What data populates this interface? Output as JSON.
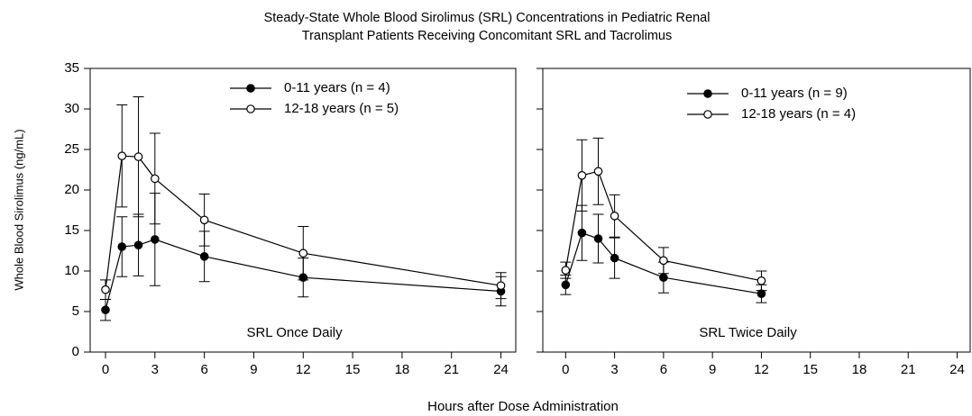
{
  "title": [
    "Steady-State Whole Blood Sirolimus (SRL) Concentrations in Pediatric Renal",
    "Transplant Patients Receiving Concomitant SRL and Tacrolimus"
  ],
  "x_label": "Hours after Dose Administration",
  "y_label": "Whole Blood Sirolimus (ng/mL)",
  "chart_data": [
    {
      "type": "line",
      "annotation": "SRL Once Daily",
      "x": [
        0,
        1,
        2,
        3,
        6,
        12,
        24
      ],
      "xlim": [
        -0.93,
        24.9
      ],
      "xticks": [
        0,
        3,
        6,
        9,
        12,
        15,
        18,
        21,
        24
      ],
      "ylim": [
        0,
        35
      ],
      "yticks": [
        0,
        5,
        10,
        15,
        20,
        25,
        30,
        35
      ],
      "show_ytick_labels": true,
      "legend": "upper right",
      "series": [
        {
          "name": "0-11 years (n = 4)",
          "color": "#000000",
          "marker_fill": "#000000",
          "values": [
            5.2,
            13.0,
            13.2,
            13.9,
            11.8,
            9.2,
            7.5
          ],
          "errors": [
            1.3,
            3.7,
            3.8,
            5.7,
            3.1,
            2.4,
            1.8
          ]
        },
        {
          "name": "12-18 years (n = 5)",
          "color": "#000000",
          "marker_fill": "#ffffff",
          "values": [
            7.7,
            24.2,
            24.1,
            21.4,
            16.3,
            12.2,
            8.2
          ],
          "errors": [
            1.2,
            6.3,
            7.4,
            5.6,
            3.2,
            3.3,
            1.6
          ]
        }
      ]
    },
    {
      "type": "line",
      "annotation": "SRL Twice Daily",
      "x": [
        0,
        1,
        2,
        3,
        6,
        12
      ],
      "xlim": [
        -1.4,
        24.8
      ],
      "xticks": [
        0,
        3,
        6,
        9,
        12,
        15,
        18,
        21,
        24
      ],
      "ylim": [
        0,
        35
      ],
      "yticks": [
        0,
        5,
        10,
        15,
        20,
        25,
        30,
        35
      ],
      "show_ytick_labels": false,
      "legend": "upper right",
      "series": [
        {
          "name": "0-11 years (n = 9)",
          "color": "#000000",
          "marker_fill": "#000000",
          "values": [
            8.3,
            14.7,
            14.0,
            11.6,
            9.2,
            7.2
          ],
          "errors": [
            1.2,
            3.4,
            3.0,
            2.5,
            1.9,
            1.1
          ]
        },
        {
          "name": "12-18 years (n = 4)",
          "color": "#000000",
          "marker_fill": "#ffffff",
          "values": [
            10.1,
            21.8,
            22.3,
            16.8,
            11.3,
            8.8
          ],
          "errors": [
            1.0,
            4.4,
            4.1,
            2.6,
            1.6,
            1.2
          ]
        }
      ]
    }
  ]
}
